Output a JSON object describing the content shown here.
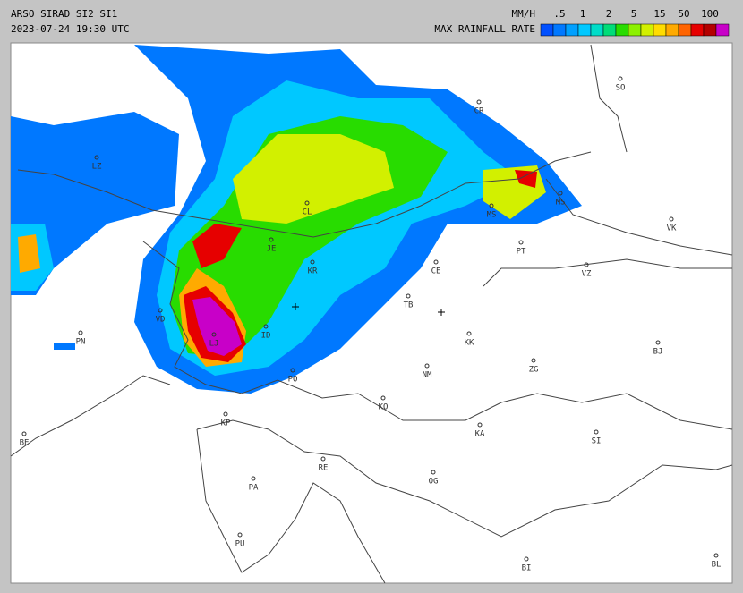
{
  "header": {
    "title": "ARSO SIRAD SI2 SI1",
    "timestamp": "2023-07-24 19:30 UTC"
  },
  "legend": {
    "unit": "MM/H",
    "title": "MAX RAINFALL RATE",
    "labels": [
      ".5",
      "1",
      "2",
      "5",
      "15",
      "50",
      "100"
    ],
    "colors": [
      "#0050ff",
      "#0078ff",
      "#00a0ff",
      "#00c8ff",
      "#00dcc8",
      "#00dc78",
      "#28dc00",
      "#8cf000",
      "#d2f000",
      "#ffdc00",
      "#ffaa00",
      "#ff6400",
      "#e60000",
      "#b40000",
      "#c800c8"
    ]
  },
  "cities": [
    "CR",
    "SO",
    "LZ",
    "CL",
    "MS",
    "MS",
    "JE",
    "PT",
    "VK",
    "VZ",
    "CE",
    "KR",
    "TB",
    "VD",
    "PN",
    "ID",
    "LJ",
    "KK",
    "BJ",
    "NM",
    "ZG",
    "PO",
    "KO",
    "KA",
    "SI",
    "BE",
    "KP",
    "RE",
    "OG",
    "PA",
    "PU",
    "BI",
    "BL"
  ]
}
